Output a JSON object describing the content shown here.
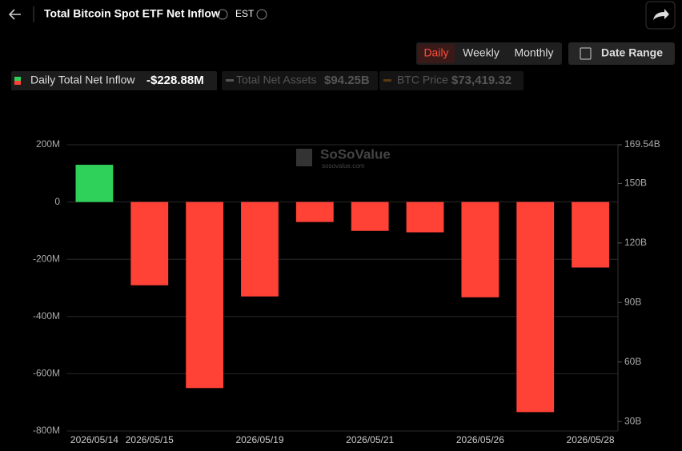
{
  "header": {
    "title": "Total Bitcoin Spot ETF Net Inflow",
    "timezone": "EST",
    "periods": [
      "Daily",
      "Weekly",
      "Monthly"
    ],
    "date_range": "Date Range",
    "watermark": "SoSoValue",
    "watermark_sub": "sosovalue.com"
  },
  "chart_data": {
    "type": "bar",
    "categories": [
      "2026/05/14",
      "2026/05/15",
      null,
      "2026/05/19",
      null,
      "2026/05/21",
      null,
      "2026/05/26",
      null,
      "2026/05/28"
    ],
    "series": [
      {
        "name": "Daily Total Net Inflow",
        "current": "-$228.88M",
        "positive_color": "#2fd15a",
        "negative_color": "#ff4136",
        "values": [
          130,
          -291,
          -650,
          -330,
          -70,
          -101,
          -106,
          -333,
          -734,
          -228.88
        ]
      }
    ],
    "inactive_legend": [
      {
        "name": "Total Net Assets",
        "current": "$94.25B"
      },
      {
        "name": "BTC Price",
        "current": "$73,419.32"
      }
    ],
    "ylim": [
      -800,
      200
    ],
    "yticks": [
      {
        "value": 200,
        "label": "200M"
      },
      0,
      {
        "value": -200,
        "label": "-200M"
      },
      {
        "value": -400,
        "label": "-400M"
      },
      {
        "value": -600,
        "label": "-600M"
      },
      {
        "value": -800,
        "label": "-800M"
      }
    ],
    "y2lim": [
      25.2,
      169.54
    ],
    "y2ticks": [
      {
        "value": 169.54,
        "label": "169.54B"
      },
      {
        "value": 150,
        "label": "150B"
      },
      {
        "value": 120,
        "label": "120B"
      },
      {
        "value": 90,
        "label": "90B"
      },
      {
        "value": 60,
        "label": "60B"
      },
      {
        "value": 30,
        "label": "30B"
      }
    ],
    "grid": true
  }
}
